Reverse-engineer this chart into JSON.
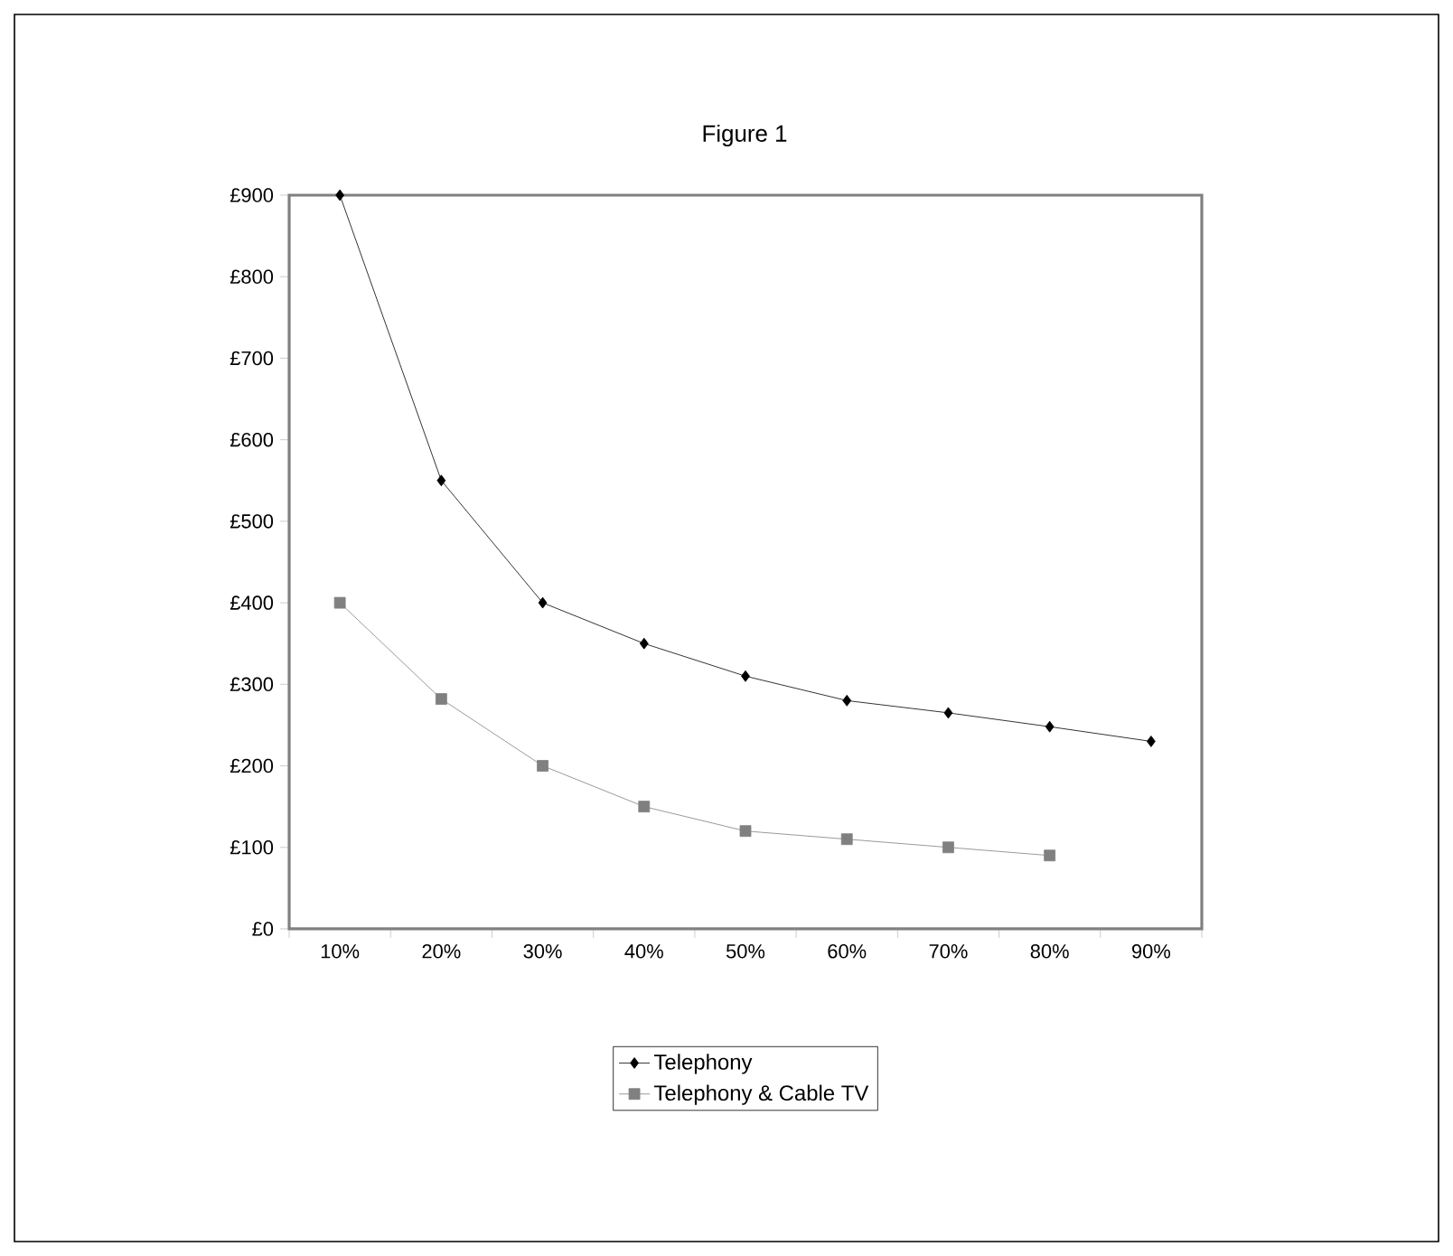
{
  "chart_data": {
    "type": "line",
    "title": "Figure 1",
    "categories": [
      "10%",
      "20%",
      "30%",
      "40%",
      "50%",
      "60%",
      "70%",
      "80%",
      "90%"
    ],
    "series": [
      {
        "name": "Telephony",
        "color": "#000000",
        "marker": "diamond",
        "values": [
          900,
          550,
          400,
          350,
          310,
          280,
          265,
          248,
          230
        ]
      },
      {
        "name": "Telephony & Cable TV",
        "color": "#808080",
        "marker": "square",
        "values": [
          400,
          282,
          200,
          150,
          120,
          110,
          100,
          90,
          null
        ]
      }
    ],
    "ylim": [
      0,
      900
    ],
    "yticks": [
      {
        "value": 0,
        "label": "£0"
      },
      {
        "value": 100,
        "label": "£100"
      },
      {
        "value": 200,
        "label": "£200"
      },
      {
        "value": 300,
        "label": "£300"
      },
      {
        "value": 400,
        "label": "£400"
      },
      {
        "value": 500,
        "label": "£500"
      },
      {
        "value": 600,
        "label": "£600"
      },
      {
        "value": 700,
        "label": "£700"
      },
      {
        "value": 800,
        "label": "£800"
      },
      {
        "value": 900,
        "label": "£900"
      }
    ],
    "grid": false,
    "legend": "bottom",
    "line_style": "solid"
  }
}
